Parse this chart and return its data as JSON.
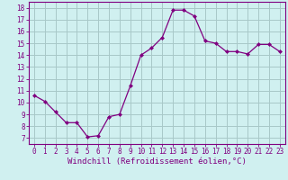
{
  "x": [
    0,
    1,
    2,
    3,
    4,
    5,
    6,
    7,
    8,
    9,
    10,
    11,
    12,
    13,
    14,
    15,
    16,
    17,
    18,
    19,
    20,
    21,
    22,
    23
  ],
  "y": [
    10.6,
    10.1,
    9.2,
    8.3,
    8.3,
    7.1,
    7.2,
    8.8,
    9.0,
    11.4,
    14.0,
    14.6,
    15.5,
    17.8,
    17.8,
    17.3,
    15.2,
    15.0,
    14.3,
    14.3,
    14.1,
    14.9,
    14.9,
    14.3
  ],
  "line_color": "#800080",
  "marker": "D",
  "marker_size": 2,
  "bg_color": "#d0f0f0",
  "grid_color": "#a8c8c8",
  "xlabel": "Windchill (Refroidissement éolien,°C)",
  "xlim": [
    -0.5,
    23.5
  ],
  "ylim": [
    6.5,
    18.5
  ],
  "yticks": [
    7,
    8,
    9,
    10,
    11,
    12,
    13,
    14,
    15,
    16,
    17,
    18
  ],
  "xticks": [
    0,
    1,
    2,
    3,
    4,
    5,
    6,
    7,
    8,
    9,
    10,
    11,
    12,
    13,
    14,
    15,
    16,
    17,
    18,
    19,
    20,
    21,
    22,
    23
  ],
  "tick_label_color": "#800080",
  "tick_fontsize": 5.5,
  "xlabel_fontsize": 6.5,
  "spine_color": "#800080"
}
